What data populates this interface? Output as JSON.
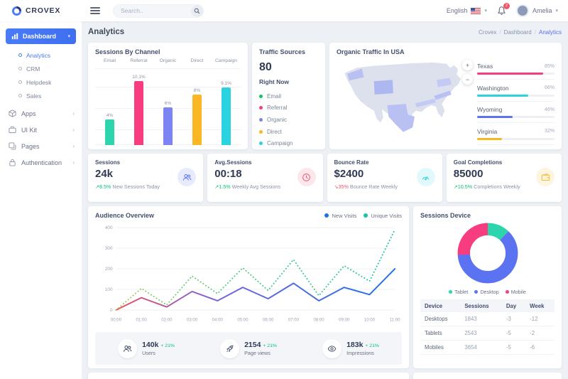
{
  "colors": {
    "success": "#0ac074",
    "danger": "#f1556c",
    "accent": "#4a7bf7"
  },
  "topbar": {
    "brand": "CROVEX",
    "search_placeholder": "Search..",
    "language": "English",
    "notification_count": "2",
    "user_name": "Amelia"
  },
  "page_title": "Analytics",
  "breadcrumb": {
    "items": [
      "Crovex",
      "Dashboard"
    ],
    "current": "Analytics"
  },
  "sidebar": {
    "dashboard_label": "Dashboard",
    "sub": [
      "Analytics",
      "CRM",
      "Helpdesk",
      "Sales"
    ],
    "groups": [
      {
        "label": "Apps"
      },
      {
        "label": "UI Kit"
      },
      {
        "label": "Pages"
      },
      {
        "label": "Authentication"
      }
    ]
  },
  "sessions_by_channel": {
    "title": "Sessions By Channel",
    "chart": {
      "type": "bar",
      "categories": [
        "Email",
        "Referral",
        "Organic",
        "Direct",
        "Campaign"
      ],
      "values": [
        4,
        10.1,
        6,
        8,
        9.1
      ],
      "labels": [
        "4%",
        "10.1%",
        "6%",
        "8%",
        "9.1%"
      ],
      "colors": [
        "#2dd5ac",
        "#f73d7f",
        "#7c83f2",
        "#fbb624",
        "#2bd2e0"
      ],
      "ymax": 12
    }
  },
  "traffic_sources": {
    "title": "Traffic Sources",
    "value": "80",
    "subtitle": "Right Now",
    "legend": [
      {
        "label": "Email",
        "color": "#10c469"
      },
      {
        "label": "Referral",
        "color": "#f73d7f"
      },
      {
        "label": "Organic",
        "color": "#7c83f2"
      },
      {
        "label": "Direct",
        "color": "#fbb624"
      },
      {
        "label": "Campaign",
        "color": "#2bd2e0"
      }
    ]
  },
  "organic_traffic": {
    "title": "Organic Traffic In USA",
    "zoom_in": "+",
    "zoom_out": "−",
    "regions": [
      {
        "name": "Texas",
        "percent": "85%",
        "value": 85,
        "color": "#f73d7f"
      },
      {
        "name": "Washington",
        "percent": "66%",
        "value": 66,
        "color": "#2bd2e0"
      },
      {
        "name": "Wyoming",
        "percent": "46%",
        "value": 46,
        "color": "#5b73f0"
      },
      {
        "name": "Virginia",
        "percent": "32%",
        "value": 32,
        "color": "#fbb624"
      }
    ]
  },
  "stat_cards": [
    {
      "title": "Sessions",
      "value": "24k",
      "delta": "8.5%",
      "delta_dir": "up",
      "desc": "New Sessions Today",
      "icon": "users",
      "accent": "#5b73f0"
    },
    {
      "title": "Avg.Sessions",
      "value": "00:18",
      "delta": "1.5%",
      "delta_dir": "up",
      "desc": "Weekly Avg Sessions",
      "icon": "clock",
      "accent": "#f1556c"
    },
    {
      "title": "Bounce Rate",
      "value": "$2400",
      "delta": "35%",
      "delta_dir": "down",
      "desc": "Bounce Rate Weekly",
      "icon": "gauge",
      "accent": "#2bd2e0"
    },
    {
      "title": "Goal Completions",
      "value": "85000",
      "delta": "10.5%",
      "delta_dir": "up",
      "desc": "Completions Weekly",
      "icon": "wallet",
      "accent": "#fbb624"
    }
  ],
  "audience_overview": {
    "title": "Audience Overview",
    "chart": {
      "type": "line",
      "x": [
        "00:00",
        "01:00",
        "02:00",
        "03:00",
        "04:00",
        "05:00",
        "06:00",
        "07:00",
        "08:00",
        "09:00",
        "10:00",
        "11:00"
      ],
      "series": [
        {
          "name": "New Visits",
          "values": [
            0,
            60,
            15,
            90,
            45,
            110,
            55,
            130,
            45,
            110,
            75,
            200
          ],
          "style": "solid",
          "color_start": "#ef4d63",
          "color_mid": "#7a64d8",
          "color_end": "#1b74e8"
        },
        {
          "name": "Unique Visits",
          "values": [
            0,
            105,
            25,
            165,
            80,
            205,
            95,
            245,
            70,
            215,
            140,
            390
          ],
          "style": "dotted",
          "color_start": "#a9c84d",
          "color_mid": "#55c97d",
          "color_end": "#18c5a3"
        }
      ],
      "ylim": [
        0,
        400
      ],
      "yticks": [
        0,
        100,
        200,
        300,
        400
      ]
    },
    "stats": [
      {
        "value": "140k",
        "delta": "+ 21%",
        "label": "Users",
        "icon": "users"
      },
      {
        "value": "2154",
        "delta": "+ 21%",
        "label": "Page views",
        "icon": "rocket"
      },
      {
        "value": "183k",
        "delta": "+ 21%",
        "label": "Impressions",
        "icon": "eye"
      }
    ]
  },
  "sessions_device": {
    "title": "Sessions Device",
    "chart": {
      "type": "pie",
      "slices": [
        {
          "label": "Tablet",
          "value": 12,
          "color": "#2dd5ac"
        },
        {
          "label": "Desktop",
          "value": 62,
          "color": "#5b73f0"
        },
        {
          "label": "Mobile",
          "value": 26,
          "color": "#f73d7f"
        }
      ]
    },
    "table": {
      "headers": [
        "Device",
        "Sessions",
        "Day",
        "Week"
      ],
      "rows": [
        {
          "device": "Desktops",
          "sessions": "1843",
          "day": "-3",
          "week": "-12"
        },
        {
          "device": "Tablets",
          "sessions": "2543",
          "day": "-5",
          "week": "-2"
        },
        {
          "device": "Mobiles",
          "sessions": "3654",
          "day": "-5",
          "week": "-6"
        }
      ]
    }
  }
}
